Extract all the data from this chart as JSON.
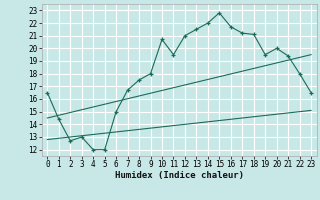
{
  "title": "",
  "xlabel": "Humidex (Indice chaleur)",
  "bg_color": "#c8e8e8",
  "grid_color": "#ffffff",
  "line_color": "#1a6b5a",
  "xlim": [
    -0.5,
    23.5
  ],
  "ylim": [
    11.5,
    23.5
  ],
  "xticks": [
    0,
    1,
    2,
    3,
    4,
    5,
    6,
    7,
    8,
    9,
    10,
    11,
    12,
    13,
    14,
    15,
    16,
    17,
    18,
    19,
    20,
    21,
    22,
    23
  ],
  "yticks": [
    12,
    13,
    14,
    15,
    16,
    17,
    18,
    19,
    20,
    21,
    22,
    23
  ],
  "main_x": [
    0,
    1,
    2,
    3,
    4,
    5,
    6,
    7,
    8,
    9,
    10,
    11,
    12,
    13,
    14,
    15,
    16,
    17,
    18,
    19,
    20,
    21,
    22,
    23
  ],
  "main_y": [
    16.5,
    14.4,
    12.7,
    13.0,
    12.0,
    12.0,
    15.0,
    16.7,
    17.5,
    18.0,
    20.7,
    19.5,
    21.0,
    21.5,
    22.0,
    22.8,
    21.7,
    21.2,
    21.1,
    19.5,
    20.0,
    19.4,
    18.0,
    16.5
  ],
  "line2_x": [
    0,
    23
  ],
  "line2_y": [
    14.5,
    19.5
  ],
  "line3_x": [
    0,
    23
  ],
  "line3_y": [
    12.8,
    15.1
  ],
  "tick_fontsize": 5.5,
  "xlabel_fontsize": 6.5
}
